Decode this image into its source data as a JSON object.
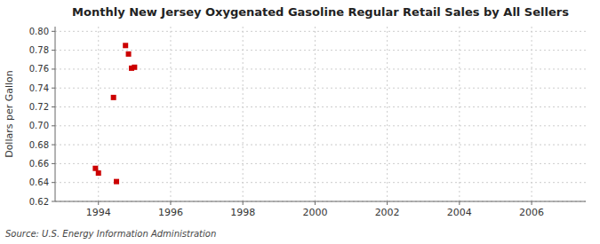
{
  "chart_data": {
    "type": "scatter",
    "title": "Monthly New Jersey Oxygenated Gasoline Regular Retail Sales by All Sellers",
    "ylabel": "Dollars per Gallon",
    "annotations": [
      "Source: U.S. Energy Information Administration"
    ],
    "x": [
      1993.917,
      1994.0,
      1994.417,
      1994.5,
      1994.75,
      1994.833,
      1994.917,
      1995.0
    ],
    "values": [
      0.655,
      0.65,
      0.73,
      0.641,
      0.785,
      0.776,
      0.761,
      0.762
    ],
    "color": "#cc0000",
    "marker": "square",
    "xlim": [
      1992.8,
      2007.5
    ],
    "ylim": [
      0.62,
      0.805
    ],
    "xticks": [
      1994,
      1996,
      1998,
      2000,
      2002,
      2004,
      2006
    ],
    "yticks": [
      0.62,
      0.64,
      0.66,
      0.68,
      {
        "value": 0.7,
        "label": "0.70"
      },
      0.72,
      0.74,
      0.76,
      0.78,
      {
        "value": 0.8,
        "label": "0.80"
      }
    ],
    "grid": true
  }
}
